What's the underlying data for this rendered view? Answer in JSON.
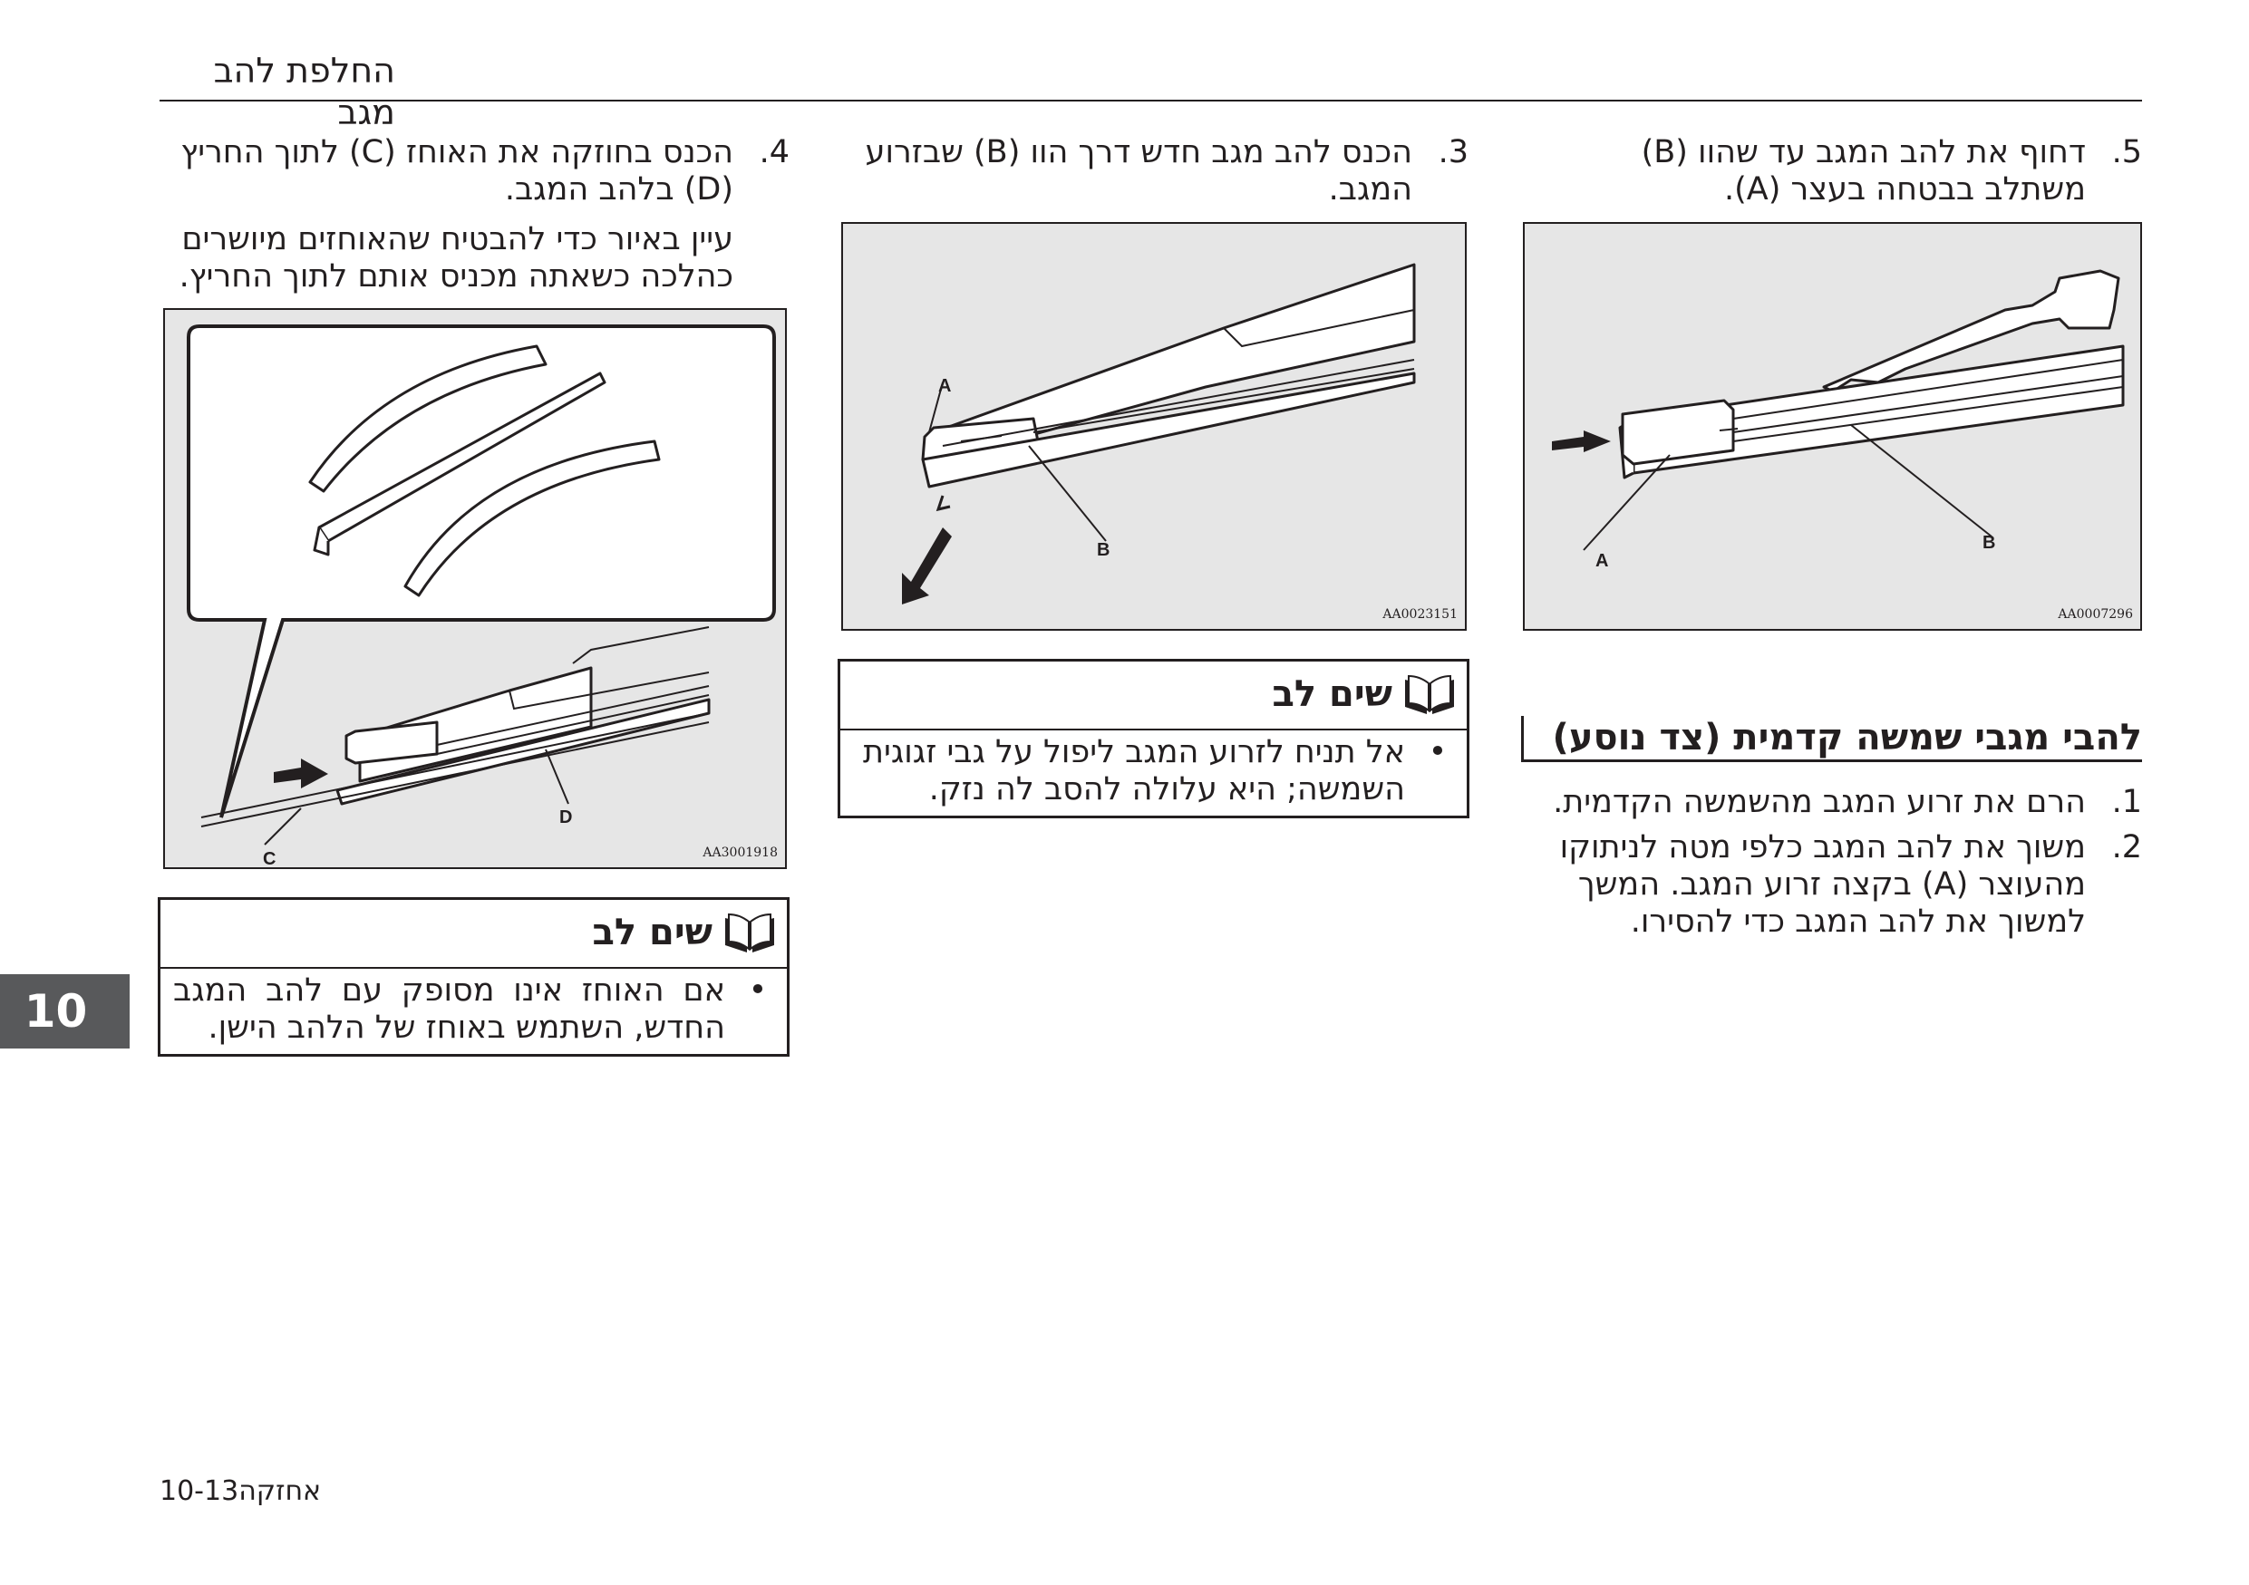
{
  "header": {
    "title": "החלפת להב מגב"
  },
  "right_column": {
    "step5": {
      "num": ".5",
      "text": "דחוף את להב המגב עד שהוו (B) משתלב בבטחה בעצר (A)."
    },
    "figure_code": "AA0007296",
    "labels": {
      "a": "A",
      "b": "B"
    },
    "section_title": "להבי מגבי שמשה קדמית (צד נוסע)",
    "step1": {
      "num": ".1",
      "text": "הרם את זרוע המגב מהשמשה הקדמית."
    },
    "step2": {
      "num": ".2",
      "text": "משוך את להב המגב כלפי מטה לניתוקו מהעוצר (A) בקצה זרוע המגב. המשך למשוך את להב המגב כדי להסירו."
    }
  },
  "middle_column": {
    "step3": {
      "num": ".3",
      "text": "הכנס להב מגב חדש דרך הוו (B) שבזרוע המגב."
    },
    "figure_code": "AA0023151",
    "labels": {
      "a": "A",
      "b": "B"
    },
    "note": {
      "title": "שים לב",
      "icon": "open-book-icon",
      "bullet": "•",
      "text": "אל תניח לזרוע המגב ליפול על גבי זגוגית השמשה; היא עלולה להסב לה נזק."
    }
  },
  "left_column": {
    "step4": {
      "num": ".4",
      "text": "הכנס בחוזקה את האוחז (C) לתוך החריץ (D) בלהב המגב."
    },
    "paragraph": "עיין באיור כדי להבטיח שהאוחזים מיושרים כהלכה כשאתה מכניס אותם לתוך החריץ.",
    "figure_code": "AA3001918",
    "labels": {
      "c": "C",
      "d": "D"
    },
    "note": {
      "title": "שים לב",
      "icon": "open-book-icon",
      "bullet": "•",
      "text": "אם האוחז אינו מסופק עם להב המגב החדש, השתמש באוחז של הלהב הישן."
    }
  },
  "chapter_tab": "10",
  "footer": {
    "page": "10-13אחזקה"
  },
  "colors": {
    "figure_bg": "#e6e6e6",
    "text": "#231f20",
    "tab": "#58595b"
  }
}
